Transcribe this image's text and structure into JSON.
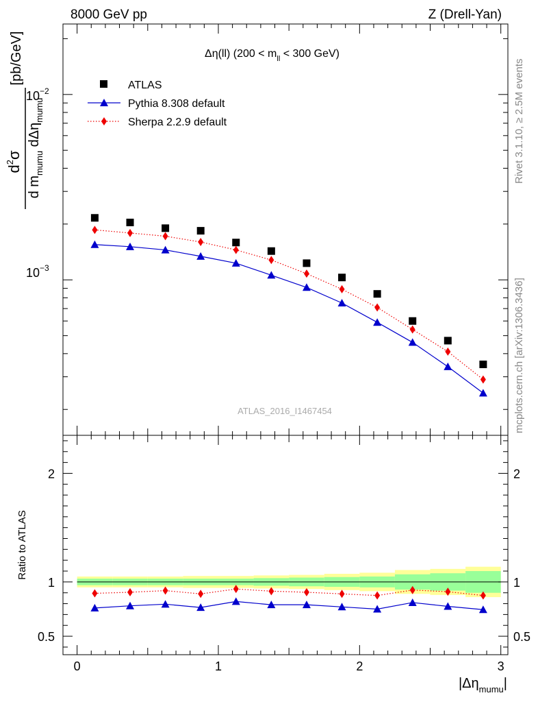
{
  "header": {
    "left": "8000 GeV pp",
    "right": "Z (Drell-Yan)"
  },
  "side_labels": {
    "rivet": "Rivet 3.1.10, ≥ 2.5M events",
    "mcplots": "mcplots.cern.ch [arXiv:1306.3436]"
  },
  "chart_data": {
    "type": "scatter",
    "title_parts": {
      "pre": "Δη(ll) (200 < m",
      "sub": "ll",
      "post": " < 300 GeV)"
    },
    "analysis_id": "ATLAS_2016_I1467454",
    "xlabel": {
      "main": "|Δη",
      "sub": "mumu",
      "post": "|"
    },
    "ylabel": {
      "num_d": "d",
      "num_sup": "2",
      "num_sigma": "σ",
      "den_pre": "d m",
      "den_sub1": "mumu",
      "den_mid": " dΔη",
      "den_sub2": "mumu",
      "unit": "[pb/GeV]"
    },
    "ratio_ylabel": "Ratio to ATLAS",
    "xlim": [
      -0.1,
      3.05
    ],
    "ylim_main": [
      0.000145,
      0.024
    ],
    "ylim_ratio": [
      0.33,
      2.35
    ],
    "y_scale_main": "log",
    "x_ticks": [
      "0",
      "1",
      "2",
      "3"
    ],
    "main_tick_labels": {
      "e2": {
        "base": "10",
        "exp": "−2"
      },
      "e3": {
        "base": "10",
        "exp": "−3"
      }
    },
    "ratio_ticks": [
      "0.5",
      "1",
      "2"
    ],
    "legend_position": "top-left",
    "x": [
      0.125,
      0.375,
      0.625,
      0.875,
      1.125,
      1.375,
      1.625,
      1.875,
      2.125,
      2.375,
      2.625,
      2.875
    ],
    "series": [
      {
        "name": "ATLAS",
        "color": "#000000",
        "marker": "square",
        "values": [
          0.00216,
          0.00204,
          0.0019,
          0.00184,
          0.00159,
          0.00143,
          0.00123,
          0.00103,
          0.00084,
          0.0006,
          0.00047,
          0.00035
        ]
      },
      {
        "name": "Pythia 8.308 default",
        "color": "#0000cc",
        "marker": "triangle",
        "line": "solid",
        "values": [
          0.00155,
          0.00151,
          0.00145,
          0.00134,
          0.00123,
          0.00106,
          0.00091,
          0.00075,
          0.00059,
          0.00046,
          0.00034,
          0.000245
        ],
        "ratio": [
          0.76,
          0.78,
          0.795,
          0.765,
          0.82,
          0.79,
          0.79,
          0.77,
          0.75,
          0.81,
          0.775,
          0.745
        ]
      },
      {
        "name": "Sherpa 2.2.9 default",
        "color": "#ee0000",
        "marker": "diamond",
        "line": "dotted",
        "values": [
          0.00186,
          0.00179,
          0.00172,
          0.0016,
          0.00145,
          0.00128,
          0.00108,
          0.00089,
          0.00071,
          0.00054,
          0.00041,
          0.00029
        ],
        "ratio": [
          0.895,
          0.905,
          0.92,
          0.89,
          0.935,
          0.915,
          0.905,
          0.89,
          0.875,
          0.925,
          0.91,
          0.875
        ]
      }
    ],
    "bands": {
      "outer_color": "#ffff99",
      "inner_color": "#99ff99",
      "outer_halfwidth": [
        0.05,
        0.05,
        0.05,
        0.055,
        0.055,
        0.06,
        0.065,
        0.075,
        0.085,
        0.11,
        0.12,
        0.14
      ],
      "inner_halfwidth": [
        0.03,
        0.03,
        0.03,
        0.03,
        0.03,
        0.035,
        0.04,
        0.045,
        0.05,
        0.07,
        0.08,
        0.1
      ]
    }
  }
}
